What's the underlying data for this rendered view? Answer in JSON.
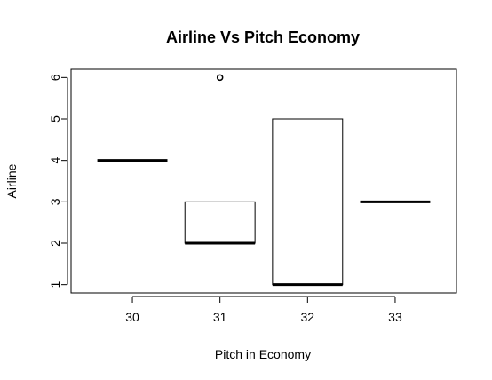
{
  "chart_data": {
    "type": "boxplot",
    "title": "Airline Vs Pitch Economy",
    "xlabel": "Pitch in Economy",
    "ylabel": "Airline",
    "categories": [
      "30",
      "31",
      "32",
      "33"
    ],
    "ylim": [
      0.8,
      6.2
    ],
    "y_ticks": [
      1,
      2,
      3,
      4,
      5,
      6
    ],
    "boxes": [
      {
        "category": "30",
        "q1": 4,
        "median": 4,
        "q3": 4,
        "outliers": []
      },
      {
        "category": "31",
        "q1": 2,
        "median": 2,
        "q3": 3,
        "outliers": [
          6
        ]
      },
      {
        "category": "32",
        "q1": 1,
        "median": 1,
        "q3": 5,
        "outliers": []
      },
      {
        "category": "33",
        "q1": 3,
        "median": 3,
        "q3": 3,
        "outliers": []
      }
    ],
    "grid": false,
    "colors": {
      "line": "#000000",
      "background": "#ffffff"
    }
  }
}
